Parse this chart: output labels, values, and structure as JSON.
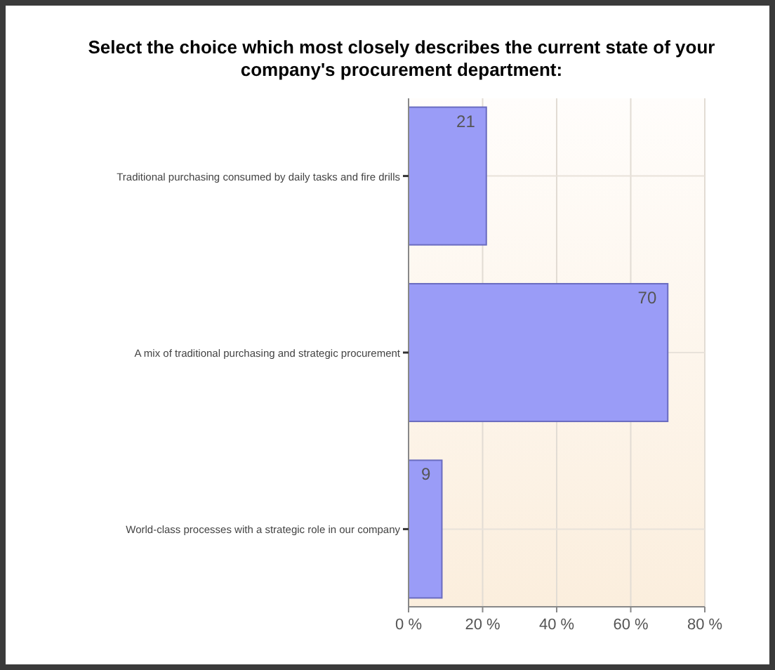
{
  "chart_data": {
    "type": "bar",
    "orientation": "horizontal",
    "title": "Select the choice which most closely describes the current state of your company's procurement department:",
    "categories": [
      "Traditional purchasing consumed by daily tasks and fire drills",
      "A mix of traditional purchasing and strategic procurement",
      "World-class processes with a strategic role in our company"
    ],
    "values": [
      21,
      70,
      9
    ],
    "color": "#9a9cf7",
    "xlim": [
      0,
      80
    ],
    "xticks": [
      {
        "value": 0,
        "label": "0 %"
      },
      {
        "value": 20,
        "label": "20 %"
      },
      {
        "value": 40,
        "label": "40 %"
      },
      {
        "value": 60,
        "label": "60 %"
      },
      {
        "value": 80,
        "label": "80 %"
      }
    ],
    "grid": "x",
    "data_labels": true
  }
}
